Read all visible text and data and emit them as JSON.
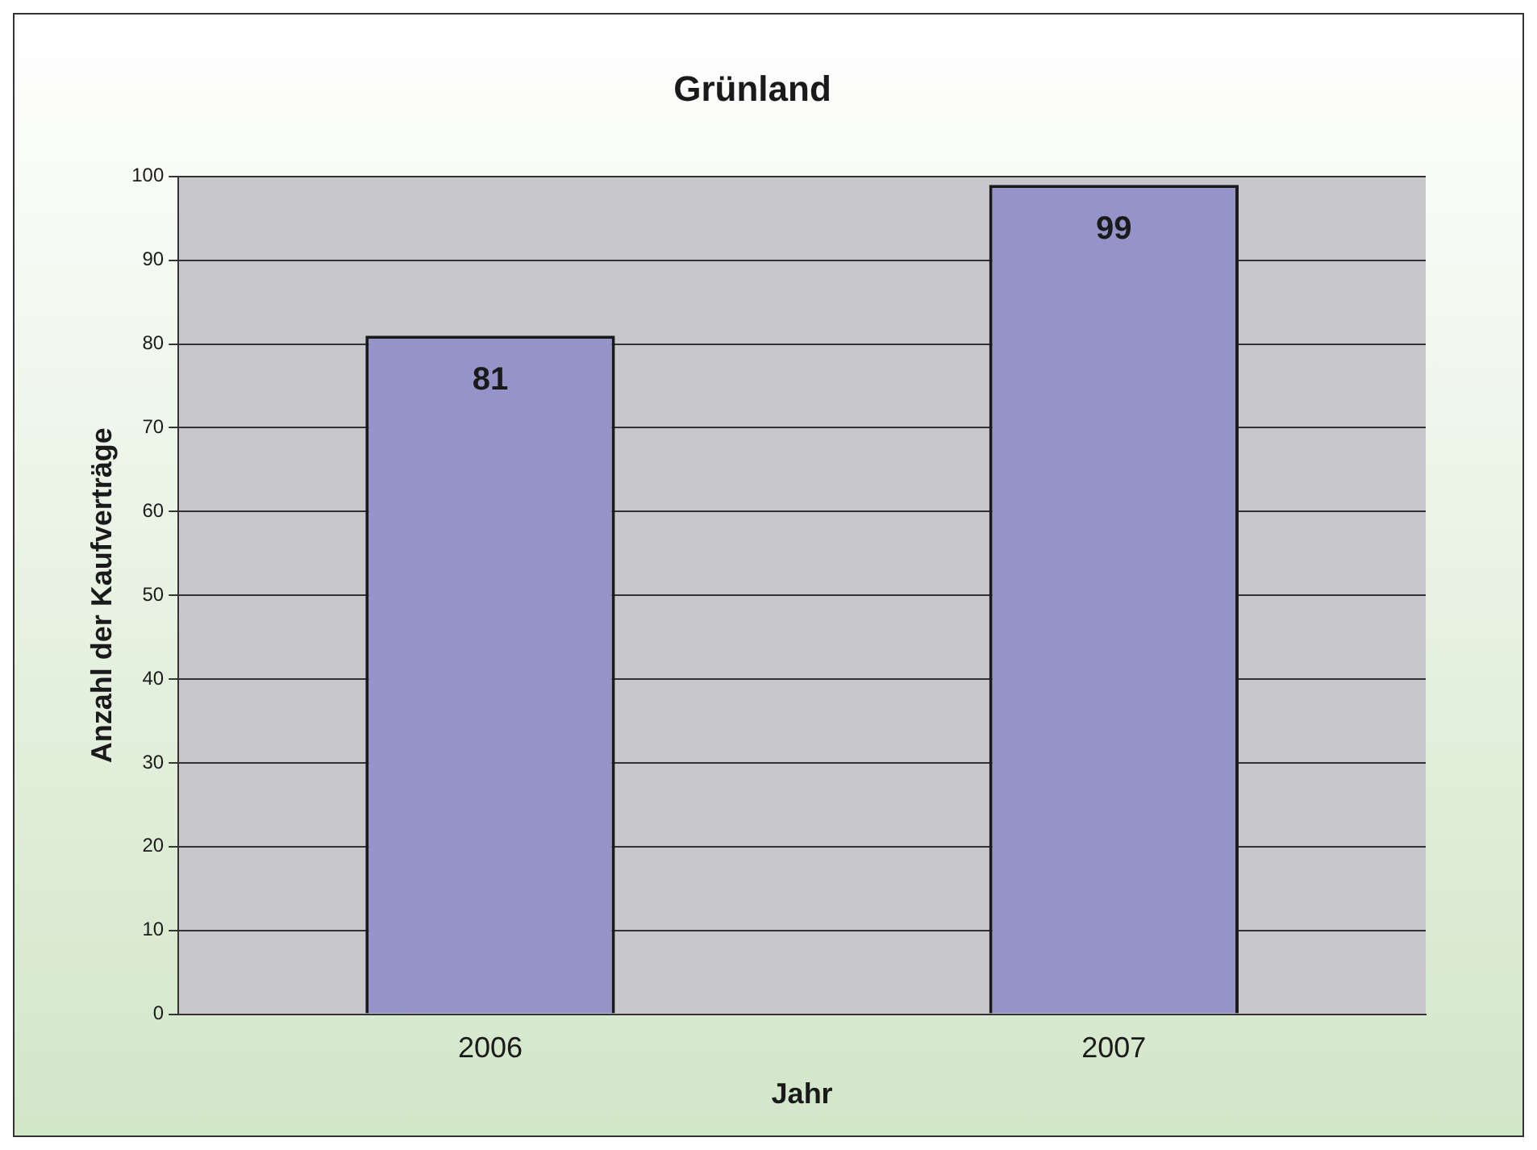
{
  "chart_data": {
    "type": "bar",
    "title": "Grünland",
    "xlabel": "Jahr",
    "ylabel": "Anzahl der Kaufverträge",
    "categories": [
      "2006",
      "2007"
    ],
    "values": [
      81,
      99
    ],
    "color": "#9494c8",
    "ylim": [
      0,
      100
    ],
    "yticks": [
      0,
      10,
      20,
      30,
      40,
      50,
      60,
      70,
      80,
      90,
      100
    ],
    "grid": "y",
    "data_labels": true
  }
}
